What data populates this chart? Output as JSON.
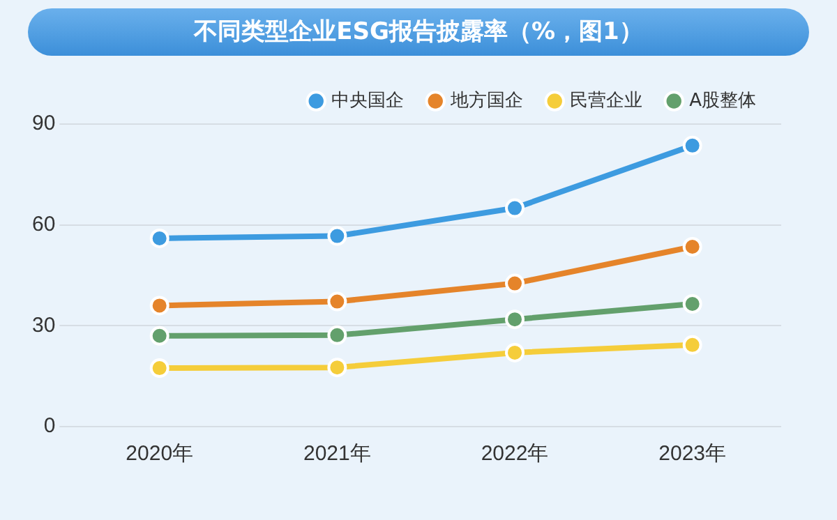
{
  "chart_data": {
    "type": "line",
    "title": "不同类型企业ESG报告披露率（%，图1）",
    "categories": [
      "2020年",
      "2021年",
      "2022年",
      "2023年"
    ],
    "series": [
      {
        "name": "中央国企",
        "color": "#3d9be0",
        "values": [
          56,
          56.7,
          65,
          83.6
        ]
      },
      {
        "name": "地方国企",
        "color": "#e5842a",
        "values": [
          36,
          37.2,
          42.6,
          53.5
        ]
      },
      {
        "name": "民营企业",
        "color": "#f5cd3a",
        "values": [
          17.4,
          17.6,
          22,
          24.3
        ]
      },
      {
        "name": "A股整体",
        "color": "#63a06c",
        "values": [
          27,
          27.2,
          31.9,
          36.5
        ]
      }
    ],
    "ylim": [
      0,
      90
    ],
    "yticks": [
      0,
      30,
      60,
      90
    ],
    "grid": "y",
    "legend": "top right",
    "marker": "circle",
    "line_style": "solid"
  }
}
